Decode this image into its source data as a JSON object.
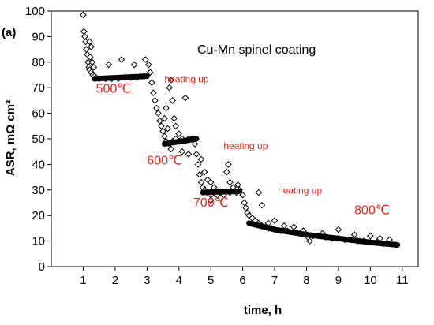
{
  "chart_data": {
    "type": "scatter",
    "panel_label": "(a)",
    "title": "Cu-Mn spinel coating",
    "xlabel": "time, h",
    "ylabel": "ASR, mΩ cm²",
    "xlim": [
      0,
      11.5
    ],
    "ylim": [
      0,
      100
    ],
    "xticks": [
      "1",
      "2",
      "3",
      "4",
      "5",
      "6",
      "7",
      "8",
      "9",
      "10",
      "11"
    ],
    "yticks": [
      "0",
      "10",
      "20",
      "30",
      "40",
      "50",
      "60",
      "70",
      "80",
      "90",
      "100"
    ],
    "marker": "open-diamond",
    "marker_color": "#000000",
    "grid": false,
    "series": [
      {
        "values": [
          [
            1.0,
            98.5
          ],
          [
            1.02,
            92
          ],
          [
            1.05,
            90
          ],
          [
            1.08,
            88
          ],
          [
            1.1,
            85
          ],
          [
            1.13,
            83
          ],
          [
            1.15,
            80
          ],
          [
            1.18,
            78
          ],
          [
            1.2,
            77
          ],
          [
            1.25,
            76
          ],
          [
            1.3,
            75
          ],
          [
            1.35,
            74.5
          ],
          [
            1.4,
            74
          ],
          [
            1.2,
            88
          ],
          [
            1.25,
            86
          ],
          [
            1.22,
            82
          ],
          [
            1.28,
            80
          ],
          [
            1.33,
            78
          ],
          [
            1.5,
            73.5
          ],
          [
            1.7,
            73.5
          ],
          [
            1.9,
            73.5
          ],
          [
            2.1,
            73.5
          ],
          [
            2.3,
            74
          ],
          [
            2.5,
            74
          ],
          [
            2.7,
            74
          ],
          [
            2.9,
            74.5
          ],
          [
            1.8,
            79
          ],
          [
            2.2,
            81
          ],
          [
            2.6,
            79
          ],
          [
            2.95,
            81
          ],
          [
            3.05,
            79
          ],
          [
            3.1,
            76
          ],
          [
            3.15,
            72
          ],
          [
            3.2,
            68
          ],
          [
            3.25,
            65
          ],
          [
            3.3,
            62
          ],
          [
            3.35,
            60
          ],
          [
            3.4,
            57
          ],
          [
            3.45,
            55
          ],
          [
            3.5,
            53
          ],
          [
            3.55,
            51
          ],
          [
            3.6,
            49
          ],
          [
            3.7,
            48
          ],
          [
            3.8,
            49
          ],
          [
            3.9,
            50
          ],
          [
            4.0,
            49
          ],
          [
            4.1,
            50
          ],
          [
            4.2,
            49
          ],
          [
            4.3,
            50
          ],
          [
            4.4,
            50
          ],
          [
            3.6,
            62
          ],
          [
            3.7,
            70
          ],
          [
            3.75,
            73
          ],
          [
            3.8,
            65
          ],
          [
            3.85,
            58
          ],
          [
            3.9,
            55
          ],
          [
            4.0,
            52
          ],
          [
            4.1,
            45
          ],
          [
            4.2,
            66
          ],
          [
            4.3,
            44
          ],
          [
            3.55,
            58
          ],
          [
            3.65,
            54
          ],
          [
            3.75,
            46
          ],
          [
            4.5,
            48
          ],
          [
            4.55,
            44
          ],
          [
            4.6,
            40
          ],
          [
            4.65,
            36
          ],
          [
            4.7,
            33
          ],
          [
            4.75,
            31
          ],
          [
            4.8,
            30
          ],
          [
            4.9,
            29
          ],
          [
            5.0,
            28
          ],
          [
            5.2,
            28
          ],
          [
            5.4,
            28
          ],
          [
            5.6,
            29
          ],
          [
            5.8,
            29
          ],
          [
            5.9,
            30
          ],
          [
            4.7,
            42
          ],
          [
            4.8,
            37
          ],
          [
            4.9,
            34
          ],
          [
            5.0,
            33
          ],
          [
            5.1,
            31
          ],
          [
            5.3,
            27
          ],
          [
            5.5,
            37
          ],
          [
            5.55,
            40
          ],
          [
            5.6,
            33
          ],
          [
            5.0,
            26
          ],
          [
            5.7,
            31
          ],
          [
            5.85,
            32
          ],
          [
            6.0,
            28
          ],
          [
            6.05,
            25
          ],
          [
            6.1,
            23
          ],
          [
            6.15,
            21
          ],
          [
            6.2,
            20
          ],
          [
            6.3,
            19
          ],
          [
            6.4,
            18
          ],
          [
            6.5,
            17
          ],
          [
            6.6,
            16
          ],
          [
            6.7,
            15.5
          ],
          [
            6.8,
            15
          ],
          [
            6.9,
            15
          ],
          [
            7.0,
            14.5
          ],
          [
            7.2,
            14
          ],
          [
            7.4,
            14
          ],
          [
            7.6,
            13.5
          ],
          [
            7.8,
            13
          ],
          [
            8.0,
            12.5
          ],
          [
            8.2,
            12
          ],
          [
            8.4,
            12
          ],
          [
            8.6,
            11.5
          ],
          [
            8.8,
            11
          ],
          [
            9.0,
            11
          ],
          [
            9.2,
            10.5
          ],
          [
            9.4,
            10.5
          ],
          [
            9.6,
            10
          ],
          [
            9.8,
            10
          ],
          [
            10.0,
            9.5
          ],
          [
            10.2,
            9.5
          ],
          [
            10.4,
            9
          ],
          [
            10.6,
            9
          ],
          [
            10.8,
            8.5
          ],
          [
            6.5,
            29
          ],
          [
            6.6,
            24
          ],
          [
            6.8,
            17
          ],
          [
            7.0,
            18
          ],
          [
            7.3,
            16
          ],
          [
            7.6,
            15.5
          ],
          [
            7.9,
            14
          ],
          [
            8.05,
            11.5
          ],
          [
            8.1,
            10
          ],
          [
            8.5,
            13
          ],
          [
            9.0,
            14.5
          ],
          [
            9.5,
            12.5
          ],
          [
            10.0,
            12
          ],
          [
            10.3,
            11
          ],
          [
            10.6,
            10.5
          ]
        ]
      }
    ],
    "annotations": [
      {
        "text": "500℃",
        "x": 1.4,
        "y": 68,
        "color": "#e8231d",
        "kind": "temperature"
      },
      {
        "text": "heating up",
        "x": 3.55,
        "y": 72,
        "color": "#e8231d",
        "kind": "heating"
      },
      {
        "text": "600℃",
        "x": 3.0,
        "y": 40,
        "color": "#e8231d",
        "kind": "temperature"
      },
      {
        "text": "heating up",
        "x": 5.4,
        "y": 46,
        "color": "#e8231d",
        "kind": "heating"
      },
      {
        "text": "700℃",
        "x": 4.45,
        "y": 23.5,
        "color": "#e8231d",
        "kind": "temperature"
      },
      {
        "text": "heating up",
        "x": 7.1,
        "y": 28.5,
        "color": "#e8231d",
        "kind": "heating"
      },
      {
        "text": "800℃",
        "x": 9.5,
        "y": 20.5,
        "color": "#e8231d",
        "kind": "temperature"
      }
    ]
  }
}
